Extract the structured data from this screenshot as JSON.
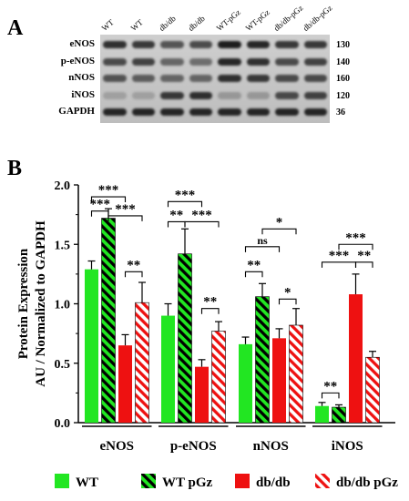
{
  "panel_a": {
    "letter": "A",
    "lanes": [
      "WT",
      "WT",
      "db/db",
      "db/db",
      "WT-pGz",
      "WT-pGz",
      "db/db-pGz",
      "db/db-pGz"
    ],
    "rows": [
      {
        "protein": "eNOS",
        "kda": "130"
      },
      {
        "protein": "p-eNOS",
        "kda": "140"
      },
      {
        "protein": "nNOS",
        "kda": "160"
      },
      {
        "protein": "iNOS",
        "kda": "120"
      },
      {
        "protein": "GAPDH",
        "kda": "36"
      }
    ]
  },
  "panel_b": {
    "letter": "B"
  },
  "colors": {
    "wt": "#22e622",
    "db": "#ee1111",
    "hatch_dark": "#000000",
    "hatch_light_wt": "#22e622",
    "hatch_light_db": "#ffffff"
  },
  "chart_data": {
    "type": "bar",
    "categories": [
      "eNOS",
      "p-eNOS",
      "nNOS",
      "iNOS"
    ],
    "ylabel": "Protein Expression\nAU / Normalized to GAPDH",
    "ylim": [
      0,
      2.0
    ],
    "yticks": [
      "0.0",
      "0.5",
      "1.0",
      "1.5",
      "2.0"
    ],
    "series": [
      {
        "name": "WT",
        "pattern": "solid-green",
        "values": [
          1.29,
          0.9,
          0.66,
          0.14
        ],
        "errors": [
          0.07,
          0.1,
          0.06,
          0.03
        ]
      },
      {
        "name": "WT pGz",
        "pattern": "hatch-green",
        "values": [
          1.72,
          1.42,
          1.06,
          0.13
        ],
        "errors": [
          0.08,
          0.21,
          0.11,
          0.02
        ]
      },
      {
        "name": "db/db",
        "pattern": "solid-red",
        "values": [
          0.65,
          0.47,
          0.71,
          1.08
        ],
        "errors": [
          0.09,
          0.06,
          0.08,
          0.17
        ]
      },
      {
        "name": "db/db pGz",
        "pattern": "hatch-red",
        "values": [
          1.01,
          0.77,
          0.82,
          0.55
        ],
        "errors": [
          0.17,
          0.08,
          0.14,
          0.05
        ]
      }
    ],
    "significance": [
      {
        "group": "eNOS",
        "from": 0,
        "to": 1,
        "label": "***",
        "level": 1.78
      },
      {
        "group": "eNOS",
        "from": 0,
        "to": 2,
        "label": "***",
        "level": 1.9
      },
      {
        "group": "eNOS",
        "from": 1,
        "to": 3,
        "label": "***",
        "level": 1.74
      },
      {
        "group": "eNOS",
        "from": 2,
        "to": 3,
        "label": "**",
        "level": 1.27
      },
      {
        "group": "p-eNOS",
        "from": 0,
        "to": 1,
        "label": "**",
        "level": 1.69
      },
      {
        "group": "p-eNOS",
        "from": 0,
        "to": 2,
        "label": "***",
        "level": 1.86
      },
      {
        "group": "p-eNOS",
        "from": 1,
        "to": 3,
        "label": "***",
        "level": 1.69
      },
      {
        "group": "p-eNOS",
        "from": 2,
        "to": 3,
        "label": "**",
        "level": 0.96
      },
      {
        "group": "nNOS",
        "from": 0,
        "to": 1,
        "label": "**",
        "level": 1.27
      },
      {
        "group": "nNOS",
        "from": 0,
        "to": 2,
        "label": "ns",
        "level": 1.48
      },
      {
        "group": "nNOS",
        "from": 1,
        "to": 3,
        "label": "*",
        "level": 1.63
      },
      {
        "group": "nNOS",
        "from": 2,
        "to": 3,
        "label": "*",
        "level": 1.04
      },
      {
        "group": "iNOS",
        "from": 0,
        "to": 1,
        "label": "**",
        "level": 0.25
      },
      {
        "group": "iNOS",
        "from": 0,
        "to": 2,
        "label": "***",
        "level": 1.35
      },
      {
        "group": "iNOS",
        "from": 1,
        "to": 3,
        "label": "***",
        "level": 1.5
      },
      {
        "group": "iNOS",
        "from": 2,
        "to": 3,
        "label": "**",
        "level": 1.35
      }
    ],
    "legend": [
      "WT",
      "WT pGz",
      "db/db",
      "db/db pGz"
    ]
  }
}
